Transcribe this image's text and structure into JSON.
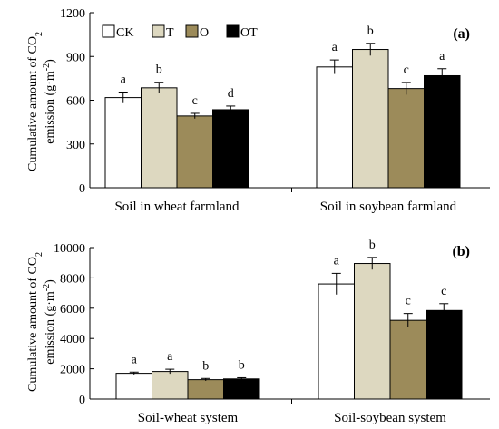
{
  "colors": {
    "CK": "#ffffff",
    "T": "#ddd8c0",
    "O": "#9c8b5a",
    "OT": "#000000",
    "axis": "#000000"
  },
  "legend": [
    "CK",
    "T",
    "O",
    "OT"
  ],
  "chart_data": [
    {
      "type": "bar",
      "panel_label": "(a)",
      "ylabel_line1": "Cumulative  amount of CO",
      "ylabel_sub1": "2",
      "ylabel_line2": "emission (g·m",
      "ylabel_sup2": "-2",
      "ylabel_end": ")",
      "ylim": [
        0,
        1200
      ],
      "yticks": [
        "0",
        "300",
        "600",
        "900",
        "1200"
      ],
      "categories": [
        "Soil in wheat farmland",
        "Soil in soybean farmland"
      ],
      "series": [
        {
          "name": "CK",
          "values": [
            618,
            828
          ],
          "errors": [
            38,
            48
          ],
          "letters": [
            "a",
            "a"
          ]
        },
        {
          "name": "T",
          "values": [
            685,
            948
          ],
          "errors": [
            38,
            42
          ],
          "letters": [
            "b",
            "b"
          ]
        },
        {
          "name": "O",
          "values": [
            492,
            680
          ],
          "errors": [
            18,
            42
          ],
          "letters": [
            "c",
            "c"
          ]
        },
        {
          "name": "OT",
          "values": [
            535,
            768
          ],
          "errors": [
            25,
            48
          ],
          "letters": [
            "d",
            "a"
          ]
        }
      ],
      "grid": false,
      "legend_position": "top-left"
    },
    {
      "type": "bar",
      "panel_label": "(b)",
      "ylabel_line1": "Cumulative  amount of CO",
      "ylabel_sub1": "2",
      "ylabel_line2": "emission (g·m",
      "ylabel_sup2": "-2",
      "ylabel_end": ")",
      "ylim": [
        0,
        10000
      ],
      "yticks": [
        "0",
        "2000",
        "4000",
        "6000",
        "8000",
        "10000"
      ],
      "categories": [
        "Soil-wheat system",
        "Soil-soybean system"
      ],
      "series": [
        {
          "name": "CK",
          "values": [
            1700,
            7600
          ],
          "errors": [
            80,
            700
          ],
          "letters": [
            "a",
            "a"
          ]
        },
        {
          "name": "T",
          "values": [
            1820,
            8950
          ],
          "errors": [
            150,
            400
          ],
          "letters": [
            "a",
            "b"
          ]
        },
        {
          "name": "O",
          "values": [
            1280,
            5200
          ],
          "errors": [
            80,
            450
          ],
          "letters": [
            "b",
            "c"
          ]
        },
        {
          "name": "OT",
          "values": [
            1330,
            5850
          ],
          "errors": [
            80,
            450
          ],
          "letters": [
            "b",
            "c"
          ]
        }
      ],
      "grid": false
    }
  ]
}
